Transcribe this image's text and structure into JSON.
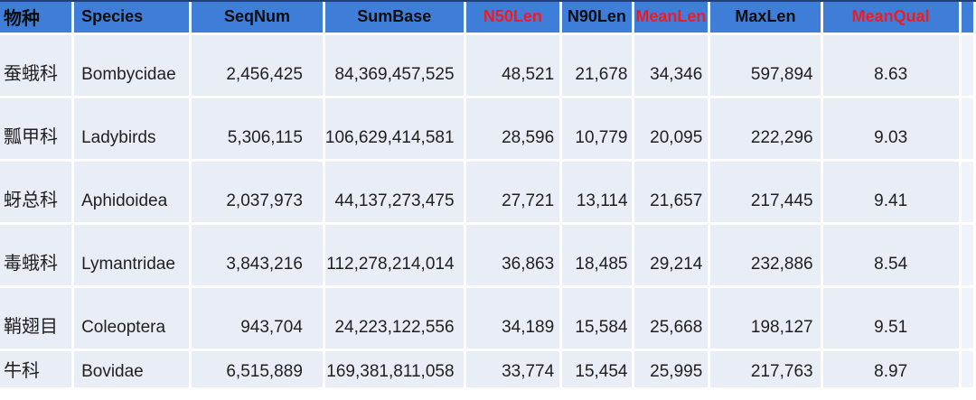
{
  "colors": {
    "header_bg": "#3E7ED8",
    "header_top_border": "#1F3F77",
    "header_red_text": "#ED1C24",
    "header_black_text": "#0D0D0D",
    "row_bg": "#E9EDF6",
    "edge_column_bg": "#F0F4FA",
    "body_text": "#1F1F1F",
    "page_bg": "#FFFFFF"
  },
  "table": {
    "headers": [
      {
        "label": "物种",
        "color": "black"
      },
      {
        "label": "Species",
        "color": "black"
      },
      {
        "label": "SeqNum",
        "color": "black"
      },
      {
        "label": "SumBase",
        "color": "black"
      },
      {
        "label": "N50Len",
        "color": "red"
      },
      {
        "label": "N90Len",
        "color": "black"
      },
      {
        "label": "MeanLen",
        "color": "red"
      },
      {
        "label": "MaxLen",
        "color": "black"
      },
      {
        "label": "MeanQual",
        "color": "red"
      }
    ],
    "rows": [
      [
        "蚕蛾科",
        "Bombycidae",
        "2,456,425",
        "84,369,457,525",
        "48,521",
        "21,678",
        "34,346",
        "597,894",
        "8.63"
      ],
      [
        "瓢甲科",
        "Ladybirds",
        "5,306,115",
        "106,629,414,581",
        "28,596",
        "10,779",
        "20,095",
        "222,296",
        "9.03"
      ],
      [
        "蚜总科",
        "Aphidoidea",
        "2,037,973",
        "44,137,273,475",
        "27,721",
        "13,114",
        "21,657",
        "217,445",
        "9.41"
      ],
      [
        "毒蛾科",
        "Lymantridae",
        "3,843,216",
        "112,278,214,014",
        "36,863",
        "18,485",
        "29,214",
        "232,886",
        "8.54"
      ],
      [
        "鞘翅目",
        "Coleoptera",
        "943,704",
        "24,223,122,556",
        "34,189",
        "15,584",
        "25,668",
        "198,127",
        "9.51"
      ],
      [
        "牛科",
        "Bovidae",
        "6,515,889",
        "169,381,811,058",
        "33,774",
        "15,454",
        "25,995",
        "217,763",
        "8.97"
      ]
    ]
  }
}
